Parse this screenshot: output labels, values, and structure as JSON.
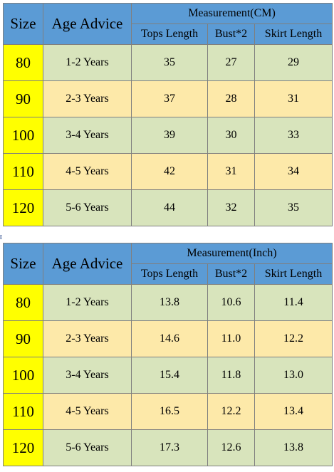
{
  "tables": [
    {
      "headers": {
        "size": "Size",
        "age": "Age Advice",
        "measurement": "Measurement(CM)",
        "tops": "Tops Length",
        "bust": "Bust*2",
        "skirt": "Skirt Length"
      },
      "rows": [
        {
          "size": "80",
          "age": "1-2 Years",
          "tops": "35",
          "bust": "27",
          "skirt": "29"
        },
        {
          "size": "90",
          "age": "2-3 Years",
          "tops": "37",
          "bust": "28",
          "skirt": "31"
        },
        {
          "size": "100",
          "age": "3-4 Years",
          "tops": "39",
          "bust": "30",
          "skirt": "33"
        },
        {
          "size": "110",
          "age": "4-5 Years",
          "tops": "42",
          "bust": "31",
          "skirt": "34"
        },
        {
          "size": "120",
          "age": "5-6 Years",
          "tops": "44",
          "bust": "32",
          "skirt": "35"
        }
      ]
    },
    {
      "headers": {
        "size": "Size",
        "age": "Age Advice",
        "measurement": "Measurement(Inch)",
        "tops": "Tops Length",
        "bust": "Bust*2",
        "skirt": "Skirt Length"
      },
      "rows": [
        {
          "size": "80",
          "age": "1-2 Years",
          "tops": "13.8",
          "bust": "10.6",
          "skirt": "11.4"
        },
        {
          "size": "90",
          "age": "2-3 Years",
          "tops": "14.6",
          "bust": "11.0",
          "skirt": "12.2"
        },
        {
          "size": "100",
          "age": "3-4 Years",
          "tops": "15.4",
          "bust": "11.8",
          "skirt": "13.0"
        },
        {
          "size": "110",
          "age": "4-5 Years",
          "tops": "16.5",
          "bust": "12.2",
          "skirt": "13.4"
        },
        {
          "size": "120",
          "age": "5-6 Years",
          "tops": "17.3",
          "bust": "12.6",
          "skirt": "13.8"
        }
      ]
    }
  ],
  "colors": {
    "header_blue": "#5b9bd5",
    "size_yellow": "#ffff00",
    "row_green": "#d8e4bc",
    "row_orange": "#fde9a9",
    "border_gray": "#7f7f7f"
  }
}
